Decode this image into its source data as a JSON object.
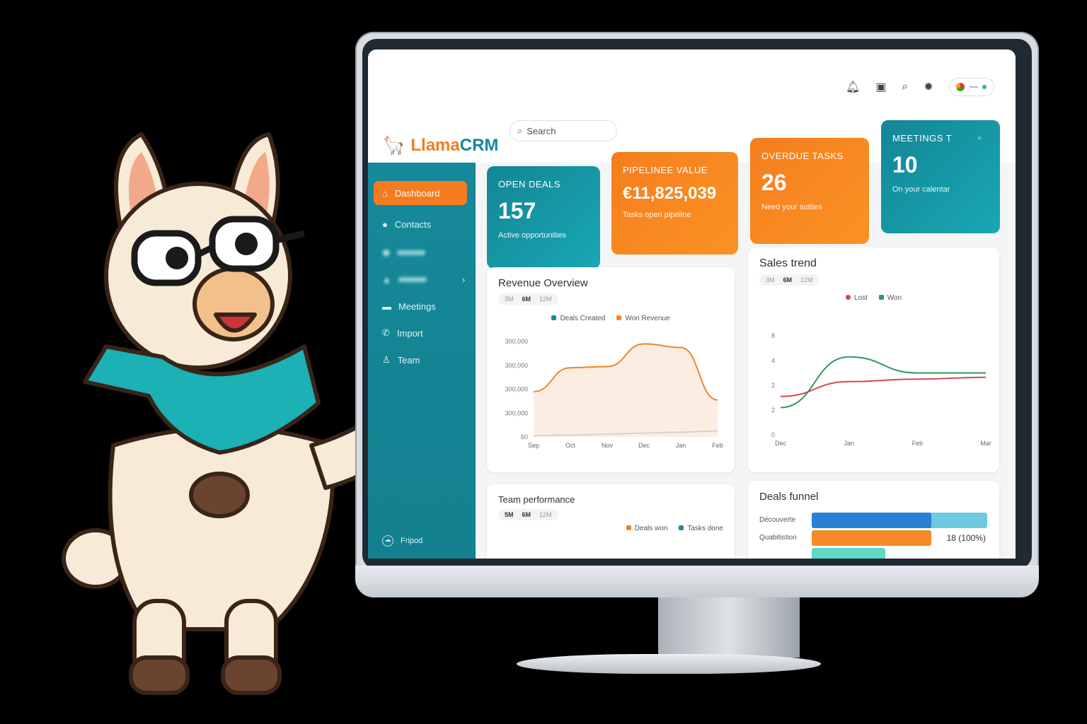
{
  "app": {
    "brand_part1": "Llama",
    "brand_part2": "CRM",
    "search_placeholder": "Search"
  },
  "header_icons": [
    "bell-icon",
    "clipboard-icon",
    "search-icon",
    "gear-icon",
    "user-avatar"
  ],
  "sidebar": {
    "items": [
      {
        "label": "Dashboard",
        "icon": "home-icon",
        "active": true
      },
      {
        "label": "Contacts",
        "icon": "user-icon"
      },
      {
        "label": "",
        "icon": "eye-icon",
        "blurred": true
      },
      {
        "label": "",
        "icon": "deals-icon",
        "blurred": true,
        "has_chevron": true
      },
      {
        "label": "Meetings",
        "icon": "calendar-icon"
      },
      {
        "label": "Import",
        "icon": "phone-icon"
      },
      {
        "label": "Team",
        "icon": "team-icon"
      }
    ],
    "footer": "Fripod"
  },
  "cards": [
    {
      "title": "OPEN DEALS",
      "value": "157",
      "sub": "Active opportunities",
      "color": "#138696"
    },
    {
      "title": "PIPELINEE VALUE",
      "value": "€11,825,039",
      "sub": "Tasks open pipeline",
      "color": "#f57e1e"
    },
    {
      "title": "OVERDUE TASKS",
      "value": "26",
      "sub": "Need your sutties",
      "color": "#f57e1e"
    },
    {
      "title": "MEETINGS T",
      "value": "10",
      "sub": "On your calentar",
      "color": "#138696"
    }
  ],
  "ranges": {
    "r3": "3M",
    "r6": "6M",
    "r12": "12M"
  },
  "chart_data": [
    {
      "type": "area",
      "title": "Revenue Overview",
      "selected_range": "6M",
      "categories": [
        "Sep",
        "Oct",
        "Nov",
        "Dec",
        "Jan",
        "Feb"
      ],
      "y_tick_labels": [
        "300,000",
        "300,000",
        "300,000",
        "300,000",
        "60"
      ],
      "ylim": [
        0,
        400000
      ],
      "legend_placement": "top",
      "series": [
        {
          "name": "Deals Created",
          "color": "#1a8a9a",
          "values": [
            5000,
            8000,
            12000,
            16000,
            20000,
            25000
          ]
        },
        {
          "name": "Won Revenue",
          "color": "#f0842a",
          "values": [
            190000,
            290000,
            295000,
            390000,
            375000,
            155000
          ]
        }
      ]
    },
    {
      "type": "line",
      "title": "Sales trend",
      "selected_range": "6M",
      "categories": [
        "Dec",
        "Jan",
        "Feb",
        "Mar"
      ],
      "y_tick_labels": [
        "8",
        "4",
        "2",
        "2",
        "0"
      ],
      "ylim": [
        0,
        8
      ],
      "legend_placement": "top",
      "series": [
        {
          "name": "Lost",
          "color": "#d9434a",
          "values": [
            3.1,
            4.3,
            4.5,
            4.65
          ]
        },
        {
          "name": "Won",
          "color": "#2a9a5a",
          "values": [
            2.2,
            6.3,
            5.0,
            5.0
          ]
        }
      ]
    }
  ],
  "team_performance": {
    "title": "Team performance",
    "ranges": [
      "5M",
      "6M",
      "12M"
    ],
    "legend": [
      {
        "name": "Deals won",
        "color": "#f0842a"
      },
      {
        "name": "Tasks done",
        "color": "#1a8a9a"
      }
    ]
  },
  "funnel": {
    "title": "Deals funnel",
    "stages": [
      {
        "label": "Découverte",
        "fraction": 1.0,
        "color": "#2a7fd6"
      },
      {
        "label": "Quabitistion",
        "fraction": 0.68,
        "color": "#f58a26",
        "value_label": "18 (100%)"
      },
      {
        "label": "",
        "fraction": 0.42,
        "color": "#5fd8c6"
      }
    ]
  }
}
